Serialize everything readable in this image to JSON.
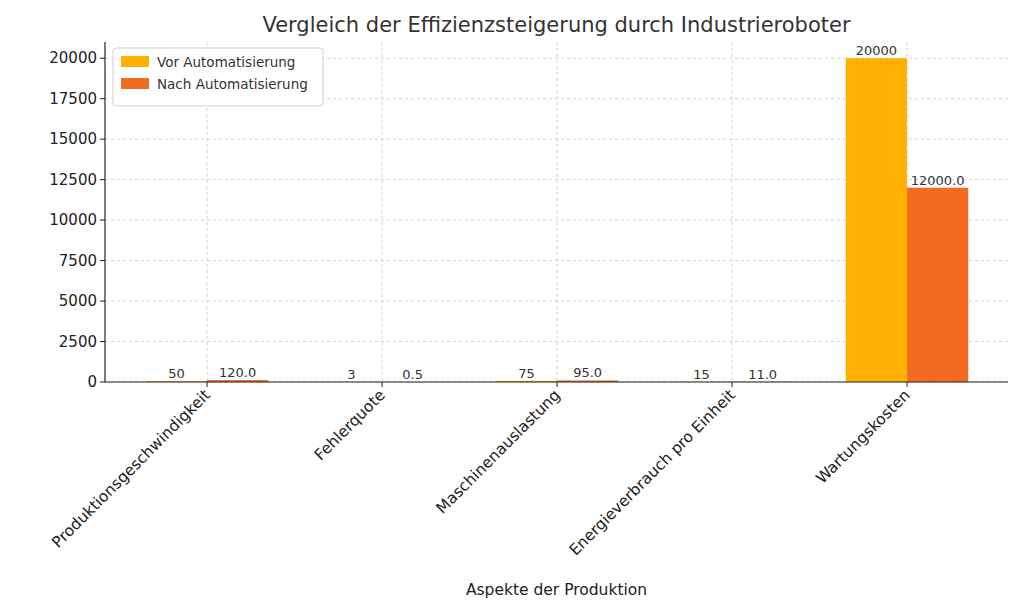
{
  "chart_data": {
    "type": "bar",
    "title": "Vergleich der Effizienzsteigerung durch Industrieroboter",
    "x_label": "Aspekte der Produktion",
    "categories": [
      "Produktionsgeschwindigkeit",
      "Fehlerquote",
      "Maschinenauslastung",
      "Energieverbrauch pro Einheit",
      "Wartungskosten"
    ],
    "series": [
      {
        "name": "Vor Automatisierung",
        "color": "#ffb000",
        "values": [
          50,
          3,
          75,
          15,
          20000
        ]
      },
      {
        "name": "Nach Automatisierung",
        "color": "#f26b21",
        "values": [
          120,
          0.5,
          95,
          11,
          12000
        ],
        "value_labels": [
          "120.0",
          "0.5",
          "95.0",
          "11.0",
          "12000.0"
        ]
      }
    ],
    "ylim": [
      0,
      21000
    ],
    "yticks": [
      0,
      2500,
      5000,
      7500,
      10000,
      12500,
      15000,
      17500,
      20000
    ],
    "grid": true,
    "legend": "upper left",
    "data_labels": true
  }
}
